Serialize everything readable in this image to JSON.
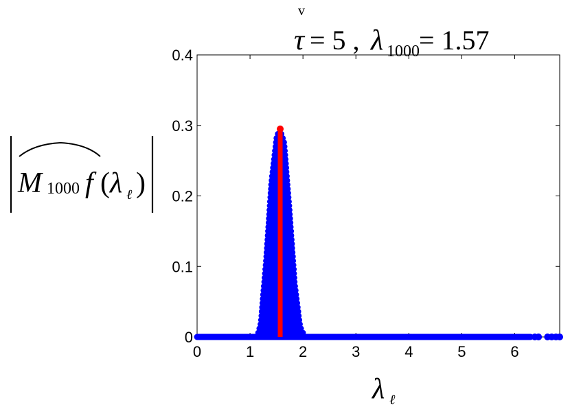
{
  "chart_data": {
    "type": "scatter",
    "title": {
      "tau_accent": "v",
      "tau": "τ",
      "tau_eq": " = 5 ,",
      "lambda": "λ",
      "lambda_sub": "1000",
      "lambda_eq": " = 1.57"
    },
    "ylabel": {
      "M": "M",
      "M_sub": "1000",
      "f": "f",
      "open": "(",
      "lambda": "λ",
      "lambda_sub": "ℓ",
      "close": ")"
    },
    "xlabel": {
      "lambda": "λ",
      "lambda_sub": "ℓ"
    },
    "xlim": [
      0,
      6.85
    ],
    "ylim": [
      0,
      0.4
    ],
    "xticks": [
      "0",
      "1",
      "2",
      "3",
      "4",
      "5",
      "6"
    ],
    "yticks": [
      "0",
      "0.1",
      "0.2",
      "0.3",
      "0.4"
    ],
    "grid": false,
    "series": [
      {
        "color": "#0000ff",
        "marker": "circle",
        "peak_center": 1.57,
        "peak_height": 0.295,
        "support": [
          1.13,
          2.04
        ],
        "x": [
          0,
          0.5,
          1.0,
          1.13,
          1.2,
          1.3,
          1.4,
          1.5,
          1.57,
          1.65,
          1.75,
          1.85,
          1.95,
          2.04,
          2.5,
          3.0,
          3.5,
          4.0,
          4.5,
          5.0,
          5.5,
          6.0,
          6.3,
          6.5,
          6.7,
          6.85
        ],
        "y": [
          0,
          0,
          0,
          0,
          0.02,
          0.11,
          0.22,
          0.285,
          0.295,
          0.275,
          0.18,
          0.075,
          0.015,
          0,
          0,
          0,
          0,
          0,
          0,
          0,
          0,
          0,
          0,
          0,
          0,
          0
        ]
      },
      {
        "color": "#ff0000",
        "marker": "line",
        "x": [
          1.57,
          1.57
        ],
        "y": [
          0,
          0.295
        ]
      }
    ]
  }
}
